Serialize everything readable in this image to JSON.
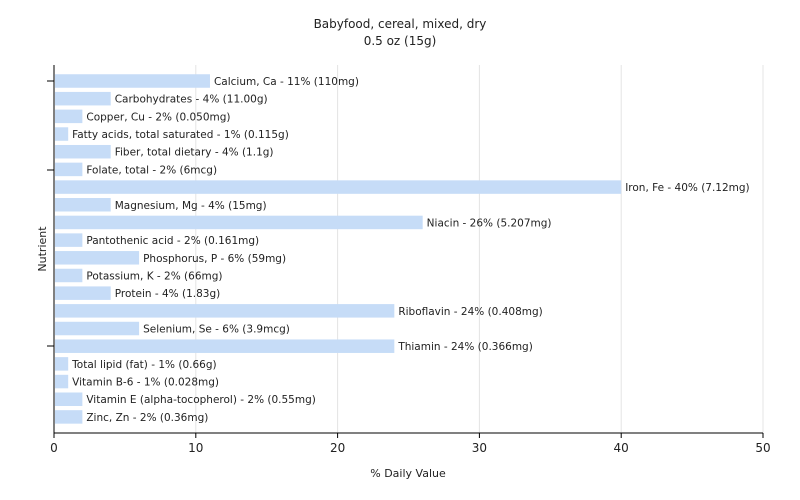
{
  "chart_data": {
    "type": "bar",
    "orientation": "horizontal",
    "title": "Babyfood, cereal, mixed, dry",
    "subtitle": "0.5 oz (15g)",
    "xlabel": "% Daily Value",
    "ylabel": "Nutrient",
    "xlim": [
      0,
      50
    ],
    "xticks": [
      0,
      10,
      20,
      30,
      40,
      50
    ],
    "grid": true,
    "bar_color": "#c6dcf7",
    "categories": [
      "Calcium, Ca",
      "Carbohydrates",
      "Copper, Cu",
      "Fatty acids, total saturated",
      "Fiber, total dietary",
      "Folate, total",
      "Iron, Fe",
      "Magnesium, Mg",
      "Niacin",
      "Pantothenic acid",
      "Phosphorus, P",
      "Potassium, K",
      "Protein",
      "Riboflavin",
      "Selenium, Se",
      "Thiamin",
      "Total lipid (fat)",
      "Vitamin B-6",
      "Vitamin E (alpha-tocopherol)",
      "Zinc, Zn"
    ],
    "values": [
      11,
      4,
      2,
      1,
      4,
      2,
      40,
      4,
      26,
      2,
      6,
      2,
      4,
      24,
      6,
      24,
      1,
      1,
      2,
      2
    ],
    "labels": [
      "Calcium, Ca - 11% (110mg)",
      "Carbohydrates - 4% (11.00g)",
      "Copper, Cu - 2% (0.050mg)",
      "Fatty acids, total saturated - 1% (0.115g)",
      "Fiber, total dietary - 4% (1.1g)",
      "Folate, total - 2% (6mcg)",
      "Iron, Fe - 40% (7.12mg)",
      "Magnesium, Mg - 4% (15mg)",
      "Niacin - 26% (5.207mg)",
      "Pantothenic acid - 2% (0.161mg)",
      "Phosphorus, P - 6% (59mg)",
      "Potassium, K - 2% (66mg)",
      "Protein - 4% (1.83g)",
      "Riboflavin - 24% (0.408mg)",
      "Selenium, Se - 6% (3.9mcg)",
      "Thiamin - 24% (0.366mg)",
      "Total lipid (fat) - 1% (0.66g)",
      "Vitamin B-6 - 1% (0.028mg)",
      "Vitamin E (alpha-tocopherol) - 2% (0.55mg)",
      "Zinc, Zn - 2% (0.36mg)"
    ]
  }
}
